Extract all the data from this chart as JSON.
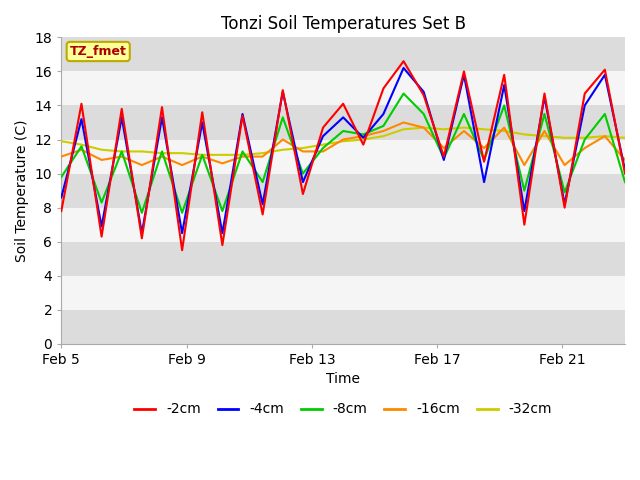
{
  "title": "Tonzi Soil Temperatures Set B",
  "xlabel": "Time",
  "ylabel": "Soil Temperature (C)",
  "ylim": [
    0,
    18
  ],
  "yticks": [
    0,
    2,
    4,
    6,
    8,
    10,
    12,
    14,
    16,
    18
  ],
  "annotation_text": "TZ_fmet",
  "annotation_color": "#AA0000",
  "annotation_bg": "#FFFF99",
  "annotation_edge": "#BBAA00",
  "legend_labels": [
    "-2cm",
    "-4cm",
    "-8cm",
    "-16cm",
    "-32cm"
  ],
  "legend_colors": [
    "#FF0000",
    "#0000FF",
    "#00CC00",
    "#FF8800",
    "#CCCC00"
  ],
  "line_width": 1.5,
  "x_tick_labels": [
    "Feb 5",
    "Feb 9",
    "Feb 13",
    "Feb 17",
    "Feb 21"
  ],
  "x_tick_positions": [
    0,
    4,
    8,
    12,
    16
  ],
  "gray_color": "#DCDCDC",
  "white_color": "#F5F5F5",
  "series": {
    "depth_2cm": [
      7.8,
      14.1,
      6.3,
      13.8,
      6.2,
      13.9,
      5.5,
      13.6,
      5.8,
      13.4,
      7.6,
      14.9,
      8.8,
      12.7,
      14.1,
      11.7,
      15.0,
      16.6,
      14.6,
      11.0,
      16.0,
      10.7,
      15.8,
      7.0,
      14.7,
      8.0,
      14.7,
      16.1,
      10.0
    ],
    "depth_4cm": [
      8.6,
      13.2,
      6.9,
      13.3,
      6.5,
      13.3,
      6.5,
      13.0,
      6.5,
      13.5,
      8.2,
      14.8,
      9.5,
      12.2,
      13.3,
      12.1,
      13.5,
      16.2,
      14.8,
      10.8,
      15.8,
      9.5,
      15.2,
      7.8,
      14.5,
      8.2,
      14.0,
      15.8,
      10.2
    ],
    "depth_8cm": [
      9.8,
      11.6,
      8.3,
      11.3,
      7.7,
      11.3,
      7.7,
      11.1,
      7.8,
      11.3,
      9.5,
      13.3,
      10.0,
      11.5,
      12.5,
      12.3,
      12.8,
      14.7,
      13.5,
      10.9,
      13.5,
      10.8,
      14.0,
      9.0,
      13.5,
      8.9,
      12.0,
      13.5,
      9.5
    ],
    "depth_16cm": [
      11.0,
      11.4,
      10.8,
      11.0,
      10.5,
      11.0,
      10.5,
      11.0,
      10.6,
      11.0,
      11.0,
      12.0,
      11.3,
      11.3,
      12.0,
      12.2,
      12.5,
      13.0,
      12.7,
      11.5,
      12.5,
      11.5,
      12.7,
      10.5,
      12.5,
      10.5,
      11.5,
      12.2,
      10.8
    ],
    "depth_32cm": [
      11.9,
      11.7,
      11.4,
      11.3,
      11.3,
      11.2,
      11.2,
      11.1,
      11.1,
      11.1,
      11.2,
      11.4,
      11.5,
      11.7,
      11.9,
      12.0,
      12.2,
      12.6,
      12.7,
      12.6,
      12.7,
      12.6,
      12.5,
      12.3,
      12.2,
      12.1,
      12.1,
      12.2,
      12.1
    ]
  }
}
